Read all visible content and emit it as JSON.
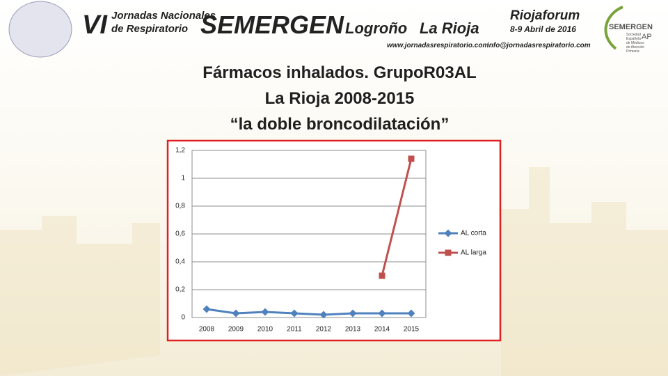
{
  "header": {
    "edition": "VI",
    "event_line1": "Jornadas Nacionales",
    "event_line2": "de Respiratorio",
    "brand": "SEMERGEN",
    "city": "Logroño",
    "region": "La Rioja",
    "web": "www.jornadasrespiratorio.com",
    "email": "info@jornadasrespiratorio.com",
    "venue": "Riojaforum",
    "dates": "8-9 Abril de 2016",
    "logo_name": "SEMERGEN",
    "logo_suffix": "AP",
    "logo_sub": [
      "Sociedad",
      "Española",
      "de Médicos",
      "de Atención",
      "Primaria"
    ]
  },
  "slide": {
    "title_lines": [
      "Fármacos inhalados. GrupoR03AL",
      "La Rioja 2008-2015",
      "“la doble broncodilatación”"
    ]
  },
  "chart_data": {
    "type": "line",
    "categories": [
      "2008",
      "2009",
      "2010",
      "2011",
      "2012",
      "2013",
      "2014",
      "2015"
    ],
    "series": [
      {
        "name": "AL corta",
        "color": "#4f81bd",
        "marker": "diamond",
        "values": [
          0.06,
          0.03,
          0.04,
          0.03,
          0.02,
          0.03,
          0.03,
          0.03
        ]
      },
      {
        "name": "AL larga",
        "color": "#c0504d",
        "marker": "square",
        "values": [
          null,
          null,
          null,
          null,
          null,
          null,
          0.3,
          1.14
        ]
      }
    ],
    "ylim": [
      0,
      1.2
    ],
    "yticks": [
      0,
      {
        "value": 0.2,
        "label": "0,2"
      },
      {
        "value": 0.4,
        "label": "0,4"
      },
      {
        "value": 0.6,
        "label": "0,6"
      },
      {
        "value": 0.8,
        "label": "0,8"
      },
      1,
      {
        "value": 1.2,
        "label": "1,2"
      }
    ],
    "grid": true,
    "legend": "right"
  }
}
